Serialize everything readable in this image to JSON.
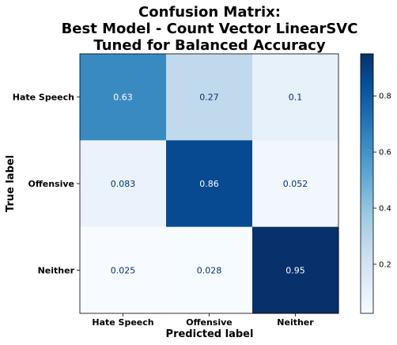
{
  "chart_data": {
    "type": "heatmap",
    "title_lines": [
      "Confusion Matrix:",
      "Best Model - Count Vector LinearSVC",
      "Tuned for Balanced Accuracy"
    ],
    "xlabel": "Predicted label",
    "ylabel": "True label",
    "x_categories": [
      "Hate Speech",
      "Offensive",
      "Neither"
    ],
    "y_categories": [
      "Hate Speech",
      "Offensive",
      "Neither"
    ],
    "values": [
      [
        0.63,
        0.27,
        0.1
      ],
      [
        0.083,
        0.86,
        0.052
      ],
      [
        0.025,
        0.028,
        0.95
      ]
    ],
    "value_labels": [
      [
        "0.63",
        "0.27",
        "0.1"
      ],
      [
        "0.083",
        "0.86",
        "0.052"
      ],
      [
        "0.025",
        "0.028",
        "0.95"
      ]
    ],
    "colormap": "Blues",
    "colorbar": {
      "range": [
        0.025,
        0.95
      ],
      "ticks": [
        0.2,
        0.4,
        0.6,
        0.8
      ],
      "tick_labels": [
        "0.2",
        "0.4",
        "0.6",
        "0.8"
      ]
    },
    "grid": false
  }
}
